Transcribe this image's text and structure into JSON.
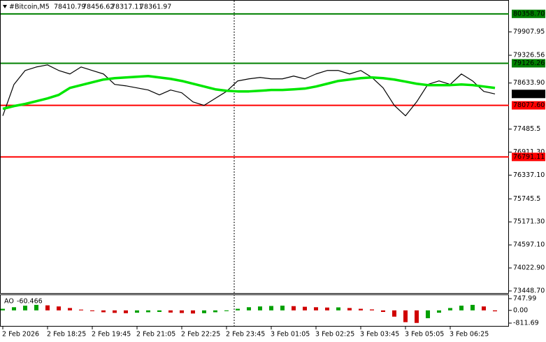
{
  "chart_data": [
    {
      "type": "line",
      "symbol": "#Bitcoin,M5",
      "ohlc": [
        78410.79,
        78456.62,
        78317.11,
        78361.97
      ],
      "categories": [
        "2 Feb 2026",
        null,
        null,
        null,
        "2 Feb 18:25",
        null,
        null,
        null,
        "2 Feb 19:45",
        null,
        null,
        null,
        "2 Feb 21:05",
        null,
        null,
        null,
        "2 Feb 22:25",
        null,
        null,
        null,
        "2 Feb 23:45",
        null,
        null,
        null,
        "3 Feb 01:05",
        null,
        null,
        null,
        "3 Feb 02:25",
        null,
        null,
        null,
        "3 Feb 03:45",
        null,
        null,
        null,
        "3 Feb 05:05",
        null,
        null,
        null,
        "3 Feb 06:25",
        null,
        null,
        null,
        null
      ],
      "series": [
        {
          "color": "#000000",
          "width": 1.2,
          "values": [
            77816,
            78599,
            78947,
            79034,
            79086,
            78947,
            78860,
            79034,
            78947,
            78860,
            78599,
            78564,
            78512,
            78460,
            78338,
            78460,
            78390,
            78164,
            78077,
            78251,
            78425,
            78686,
            78738,
            78773,
            78738,
            78738,
            78808,
            78738,
            78860,
            78947,
            78947,
            78860,
            78947,
            78773,
            78512,
            78077,
            77816,
            78164,
            78599,
            78686,
            78599,
            78860,
            78686,
            78425,
            78361.97
          ]
        },
        {
          "color": "#00e600",
          "width": 3.5,
          "values": [
            77990,
            78060,
            78112,
            78181,
            78251,
            78338,
            78512,
            78582,
            78651,
            78721,
            78756,
            78773,
            78790,
            78808,
            78773,
            78738,
            78686,
            78616,
            78547,
            78477,
            78442,
            78425,
            78425,
            78442,
            78460,
            78460,
            78477,
            78495,
            78547,
            78616,
            78686,
            78721,
            78756,
            78773,
            78756,
            78721,
            78669,
            78616,
            78582,
            78582,
            78582,
            78599,
            78582,
            78547,
            78512
          ]
        }
      ],
      "levels": [
        {
          "value": 80358.7,
          "label": "80358.70",
          "color": "#008000"
        },
        {
          "value": 79126.26,
          "label": "79126.26",
          "color": "#008000"
        },
        {
          "value": 78077.6,
          "label": "78077.60",
          "color": "#ff0000"
        },
        {
          "value": 76791.11,
          "label": "76791.11",
          "color": "#ff0000"
        }
      ],
      "last_price_color": "#000000",
      "ylim": [
        73379,
        80687
      ],
      "yticks": [
        {
          "value": 79907.95,
          "label": "79907.95"
        },
        {
          "value": 79326.56,
          "label": "79326.56"
        },
        {
          "value": 78633.9,
          "label": "78633.90"
        },
        {
          "value": 77485.5,
          "label": "77485.5"
        },
        {
          "value": 76911.3,
          "label": "76911.30"
        },
        {
          "value": 76337.1,
          "label": "76337.10"
        },
        {
          "value": 75745.5,
          "label": "75745.5"
        },
        {
          "value": 75171.3,
          "label": "75171.30"
        },
        {
          "value": 74597.1,
          "label": "74597.10"
        },
        {
          "value": 74022.9,
          "label": "74022.90"
        },
        {
          "value": 73448.7,
          "label": "73448.70"
        }
      ],
      "grid": false
    },
    {
      "type": "bar",
      "title": "AO",
      "up_color": "#00a000",
      "down_color": "#d00000",
      "values": [
        100,
        200,
        300,
        350,
        320,
        250,
        150,
        50,
        -50,
        -120,
        -160,
        -180,
        -150,
        -120,
        -100,
        -140,
        -170,
        -200,
        -180,
        -120,
        -50,
        100,
        200,
        250,
        280,
        300,
        270,
        230,
        200,
        180,
        190,
        150,
        100,
        60,
        -100,
        -400,
        -750,
        -800,
        -500,
        -150,
        150,
        300,
        350,
        250,
        -60.466
      ],
      "ylim": [
        -990,
        970
      ],
      "yticks": [
        {
          "value": 747.99,
          "label": "747.99"
        },
        {
          "value": 0,
          "label": "0.00"
        },
        {
          "value": -811.69,
          "label": "-811.69"
        }
      ],
      "grid": false
    }
  ]
}
